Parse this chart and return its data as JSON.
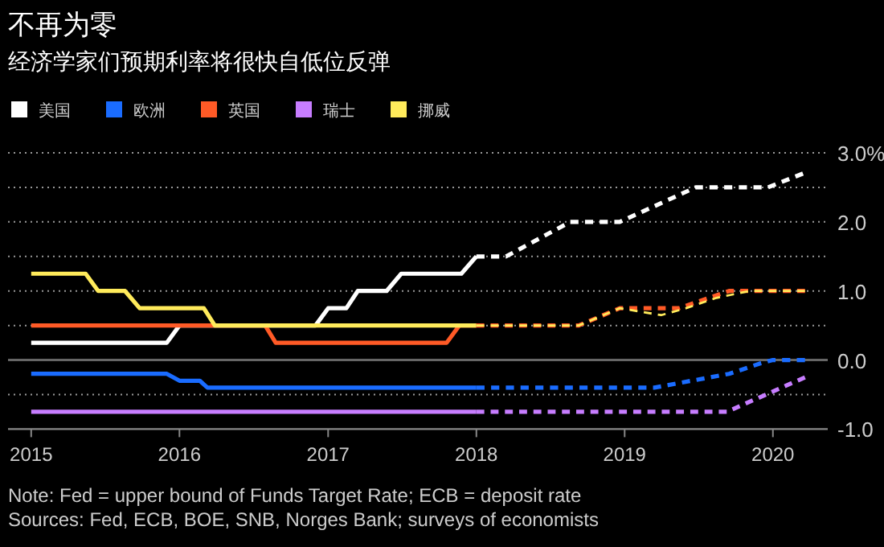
{
  "chart_data": {
    "type": "line",
    "title": "不再为零",
    "subtitle": "经济学家们预期利率将很快自低位反弹",
    "xlim": [
      "2014-11-05",
      "2020-05-15"
    ],
    "xticks": [
      "2015",
      "2016",
      "2017",
      "2018",
      "2019",
      "2020"
    ],
    "ylim": [
      -1.0,
      3.0
    ],
    "yticks": [
      {
        "value": -1,
        "label": "-1.0"
      },
      {
        "value": -0.5,
        "label": null
      },
      {
        "value": 0,
        "label": "0.0"
      },
      {
        "value": 0.5,
        "label": null
      },
      {
        "value": 1,
        "label": "1.0"
      },
      {
        "value": 1.5,
        "label": null
      },
      {
        "value": 2,
        "label": "2.0"
      },
      {
        "value": 2.5,
        "label": null
      },
      {
        "value": 3,
        "label": "3.0%"
      }
    ],
    "grid": "y",
    "legend": "top",
    "ref_lines": [
      {
        "axis": "y",
        "value": 0,
        "color": "#666666"
      }
    ],
    "series": [
      {
        "name": "美国",
        "color": "#ffffff",
        "line_style": "solid",
        "x": [
          "2015-01-01",
          "2015-12-01",
          "2016-01-01",
          "2016-12-01",
          "2017-01-01",
          "2017-02-15",
          "2017-03-15",
          "2017-05-25",
          "2017-06-30",
          "2017-11-25",
          "2018-01-01"
        ],
        "values": [
          0.25,
          0.25,
          0.5,
          0.5,
          0.75,
          0.75,
          1.0,
          1.0,
          1.25,
          1.25,
          1.5
        ]
      },
      {
        "name": "欧洲",
        "color": "#1a6cff",
        "line_style": "solid",
        "x": [
          "2015-01-01",
          "2015-12-01",
          "2016-01-01",
          "2016-02-20",
          "2016-03-10",
          "2018-01-01"
        ],
        "values": [
          -0.2,
          -0.2,
          -0.3,
          -0.3,
          -0.4,
          -0.4
        ]
      },
      {
        "name": "英国",
        "color": "#ff5a26",
        "line_style": "solid",
        "x": [
          "2015-01-01",
          "2016-07-30",
          "2016-08-25",
          "2017-10-20",
          "2017-11-20",
          "2018-01-01"
        ],
        "values": [
          0.5,
          0.5,
          0.25,
          0.25,
          0.5,
          0.5
        ]
      },
      {
        "name": "瑞士",
        "color": "#c77dff",
        "line_style": "solid",
        "x": [
          "2015-01-01",
          "2018-01-01"
        ],
        "values": [
          -0.75,
          -0.75
        ]
      },
      {
        "name": "挪威",
        "color": "#ffeb5b",
        "line_style": "solid",
        "x": [
          "2015-01-01",
          "2015-05-15",
          "2015-06-15",
          "2015-08-20",
          "2015-09-25",
          "2016-03-01",
          "2016-03-28",
          "2018-01-01"
        ],
        "values": [
          1.25,
          1.25,
          1.0,
          1.0,
          0.75,
          0.75,
          0.5,
          0.5
        ]
      },
      {
        "color": "#ffffff",
        "line_style": "dashed",
        "x": [
          "2018-01-01",
          "2018-03-15",
          "2018-08-20",
          "2018-12-20",
          "2019-06-25",
          "2019-12-20",
          "2020-03-15"
        ],
        "values": [
          1.5,
          1.5,
          2.0,
          2.0,
          2.5,
          2.5,
          2.7
        ]
      },
      {
        "color": "#1a6cff",
        "line_style": "dashed",
        "x": [
          "2018-01-01",
          "2019-03-15",
          "2019-06-15",
          "2019-09-15",
          "2019-12-01",
          "2020-01-01",
          "2020-03-20"
        ],
        "values": [
          -0.4,
          -0.4,
          -0.3,
          -0.2,
          -0.05,
          0.0,
          0.0
        ]
      },
      {
        "color": "#ff5a26",
        "line_style": "dashed",
        "x": [
          "2018-01-01",
          "2018-09-10",
          "2018-12-20",
          "2019-05-15",
          "2019-09-15",
          "2020-03-20"
        ],
        "values": [
          0.5,
          0.5,
          0.75,
          0.75,
          1.0,
          1.0
        ]
      },
      {
        "color": "#c77dff",
        "line_style": "dashed",
        "x": [
          "2018-01-01",
          "2019-09-10",
          "2020-03-20"
        ],
        "values": [
          -0.75,
          -0.75,
          -0.25
        ]
      },
      {
        "color": "#ffeb5b",
        "line_style": "dashed",
        "x": [
          "2018-01-01",
          "2018-09-10",
          "2018-12-20",
          "2019-04-01",
          "2019-06-01",
          "2019-08-15",
          "2019-11-05",
          "2020-03-20"
        ],
        "values": [
          0.5,
          0.5,
          0.75,
          0.65,
          0.75,
          0.9,
          1.0,
          1.0
        ]
      }
    ],
    "annotations": [
      "Note: Fed = upper bound of Funds Target Rate; ECB = deposit rate",
      "Sources: Fed, ECB, BOE, SNB, Norges Bank; surveys of economists"
    ]
  }
}
